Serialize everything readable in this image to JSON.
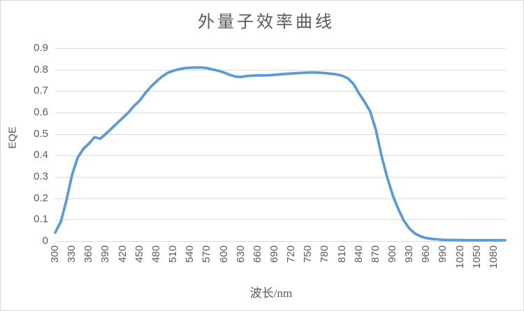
{
  "window": {
    "background": "#FFFFFF",
    "border_color": "#D9D9D9"
  },
  "chart_data": {
    "type": "line",
    "title": "外量子效率曲线",
    "xlabel": "波长/nm",
    "ylabel": "EQE",
    "legend": "none",
    "grid": "horizontal-only",
    "gridline_color": "#D9D9D9",
    "text_color": "#595959",
    "xlim": [
      300,
      1100
    ],
    "ylim": [
      0,
      0.9
    ],
    "x_tick_labels": [
      "300",
      "330",
      "360",
      "390",
      "420",
      "450",
      "480",
      "510",
      "540",
      "570",
      "600",
      "630",
      "660",
      "690",
      "720",
      "750",
      "780",
      "810",
      "840",
      "870",
      "900",
      "930",
      "960",
      "990",
      "1020",
      "1050",
      "1080"
    ],
    "y_tick_labels": [
      "0",
      "0.1",
      "0.2",
      "0.3",
      "0.4",
      "0.5",
      "0.6",
      "0.7",
      "0.8",
      "0.9"
    ],
    "series": [
      {
        "name": "EQE",
        "color": "#5B9BD5",
        "x": [
          300,
          310,
          320,
          330,
          340,
          350,
          360,
          370,
          380,
          390,
          400,
          410,
          420,
          430,
          440,
          450,
          460,
          470,
          480,
          490,
          500,
          510,
          520,
          530,
          540,
          550,
          560,
          570,
          580,
          590,
          600,
          610,
          620,
          630,
          640,
          650,
          660,
          670,
          680,
          690,
          700,
          710,
          720,
          730,
          740,
          750,
          760,
          770,
          780,
          790,
          800,
          810,
          820,
          830,
          840,
          850,
          860,
          870,
          880,
          890,
          900,
          910,
          920,
          930,
          940,
          950,
          960,
          970,
          980,
          990,
          1000,
          1010,
          1020,
          1030,
          1040,
          1050,
          1060,
          1070,
          1080,
          1090,
          1100
        ],
        "y": [
          0.04,
          0.09,
          0.19,
          0.31,
          0.39,
          0.43,
          0.455,
          0.485,
          0.478,
          0.5,
          0.525,
          0.55,
          0.575,
          0.6,
          0.63,
          0.655,
          0.69,
          0.72,
          0.745,
          0.768,
          0.785,
          0.795,
          0.802,
          0.807,
          0.809,
          0.81,
          0.81,
          0.807,
          0.801,
          0.795,
          0.787,
          0.776,
          0.768,
          0.766,
          0.77,
          0.772,
          0.773,
          0.773,
          0.774,
          0.776,
          0.778,
          0.78,
          0.782,
          0.784,
          0.785,
          0.787,
          0.787,
          0.786,
          0.784,
          0.781,
          0.778,
          0.772,
          0.76,
          0.735,
          0.69,
          0.65,
          0.605,
          0.52,
          0.4,
          0.3,
          0.215,
          0.15,
          0.095,
          0.058,
          0.035,
          0.022,
          0.014,
          0.01,
          0.008,
          0.006,
          0.005,
          0.005,
          0.005,
          0.004,
          0.004,
          0.004,
          0.004,
          0.004,
          0.004,
          0.004,
          0.004
        ]
      }
    ]
  }
}
